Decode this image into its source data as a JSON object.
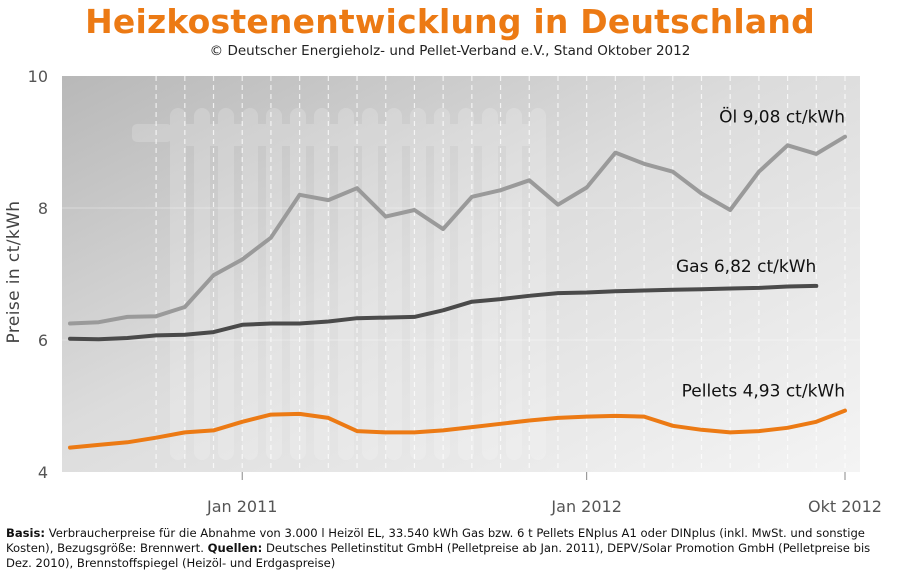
{
  "title": "Heizkostenentwicklung in Deutschland",
  "subtitle": "© Deutscher Energieholz- und Pellet-Verband e.V., Stand Oktober 2012",
  "footnote": {
    "basis_label": "Basis:",
    "basis_text": " Verbraucherpreise für die Abnahme von 3.000 l Heizöl EL, 33.540 kWh Gas bzw. 6 t Pellets ENplus A1 oder DINplus (inkl. MwSt. und sonstige Kosten), Bezugsgröße: Brennwert. ",
    "sources_label": "Quellen:",
    "sources_text": " Deutsches Pelletinstitut GmbH (Pelletpreise ab Jan. 2011), DEPV/Solar Promotion GmbH (Pelletpreise bis Dez. 2010), Brennstoffspiegel (Heizöl- und Erdgaspreise)"
  },
  "chart_data": {
    "type": "line",
    "title": "Heizkostenentwicklung in Deutschland",
    "ylabel": "Preise in ct/kWh",
    "xlabel": "",
    "ylim": [
      4,
      10
    ],
    "yticks": [
      4,
      6,
      8,
      10
    ],
    "x_months": [
      "2010-10",
      "2010-11",
      "2010-12",
      "2011-01",
      "2011-02",
      "2011-03",
      "2011-04",
      "2011-05",
      "2011-06",
      "2011-07",
      "2011-08",
      "2011-09",
      "2011-10",
      "2011-11",
      "2011-12",
      "2012-01",
      "2012-02",
      "2012-03",
      "2012-04",
      "2012-05",
      "2012-06",
      "2012-07",
      "2012-08",
      "2012-09",
      "2012-10"
    ],
    "x_ticks": [
      {
        "label": "Jan 2011",
        "month": "2011-01"
      },
      {
        "label": "Jan 2012",
        "month": "2012-01"
      },
      {
        "label": "Okt 2012",
        "month": "2012-10"
      }
    ],
    "grid": true,
    "series": [
      {
        "name": "Öl",
        "label": "Öl  9,08 ct/kWh",
        "color": "#9a9a9a",
        "x": [
          "2010-07",
          "2010-08",
          "2010-09",
          "2010-10",
          "2010-11",
          "2010-12",
          "2011-01",
          "2011-02",
          "2011-03",
          "2011-04",
          "2011-05",
          "2011-06",
          "2011-07",
          "2011-08",
          "2011-09",
          "2011-10",
          "2011-11",
          "2011-12",
          "2012-01",
          "2012-02",
          "2012-03",
          "2012-04",
          "2012-05",
          "2012-06",
          "2012-07",
          "2012-08",
          "2012-09",
          "2012-10"
        ],
        "values": [
          6.25,
          6.27,
          6.35,
          6.36,
          6.5,
          6.98,
          7.22,
          7.55,
          8.2,
          8.12,
          8.3,
          7.87,
          7.97,
          7.68,
          8.17,
          8.27,
          8.42,
          8.05,
          8.31,
          8.84,
          8.67,
          8.55,
          8.22,
          7.97,
          8.55,
          8.95,
          8.82,
          9.08
        ]
      },
      {
        "name": "Gas",
        "label": "Gas  6,82 ct/kWh",
        "color": "#4a4a4a",
        "x": [
          "2010-07",
          "2010-08",
          "2010-09",
          "2010-10",
          "2010-11",
          "2010-12",
          "2011-01",
          "2011-02",
          "2011-03",
          "2011-04",
          "2011-05",
          "2011-06",
          "2011-07",
          "2011-08",
          "2011-09",
          "2011-10",
          "2011-11",
          "2011-12",
          "2012-01",
          "2012-02",
          "2012-03",
          "2012-04",
          "2012-05",
          "2012-06",
          "2012-07",
          "2012-08",
          "2012-09"
        ],
        "values": [
          6.02,
          6.01,
          6.03,
          6.07,
          6.08,
          6.12,
          6.23,
          6.25,
          6.25,
          6.28,
          6.33,
          6.34,
          6.35,
          6.45,
          6.58,
          6.62,
          6.67,
          6.71,
          6.72,
          6.74,
          6.75,
          6.76,
          6.77,
          6.78,
          6.79,
          6.81,
          6.82
        ]
      },
      {
        "name": "Pellets",
        "label": "Pellets  4,93 ct/kWh",
        "color": "#ec7a14",
        "x": [
          "2010-07",
          "2010-08",
          "2010-09",
          "2010-10",
          "2010-11",
          "2010-12",
          "2011-01",
          "2011-02",
          "2011-03",
          "2011-04",
          "2011-05",
          "2011-06",
          "2011-07",
          "2011-08",
          "2011-09",
          "2011-10",
          "2011-11",
          "2011-12",
          "2012-01",
          "2012-02",
          "2012-03",
          "2012-04",
          "2012-05",
          "2012-06",
          "2012-07",
          "2012-08",
          "2012-09",
          "2012-10"
        ],
        "values": [
          4.37,
          4.41,
          4.45,
          4.52,
          4.6,
          4.63,
          4.76,
          4.87,
          4.88,
          4.82,
          4.62,
          4.6,
          4.6,
          4.63,
          4.68,
          4.73,
          4.78,
          4.82,
          4.84,
          4.85,
          4.84,
          4.7,
          4.64,
          4.6,
          4.62,
          4.67,
          4.76,
          4.93
        ]
      }
    ]
  }
}
